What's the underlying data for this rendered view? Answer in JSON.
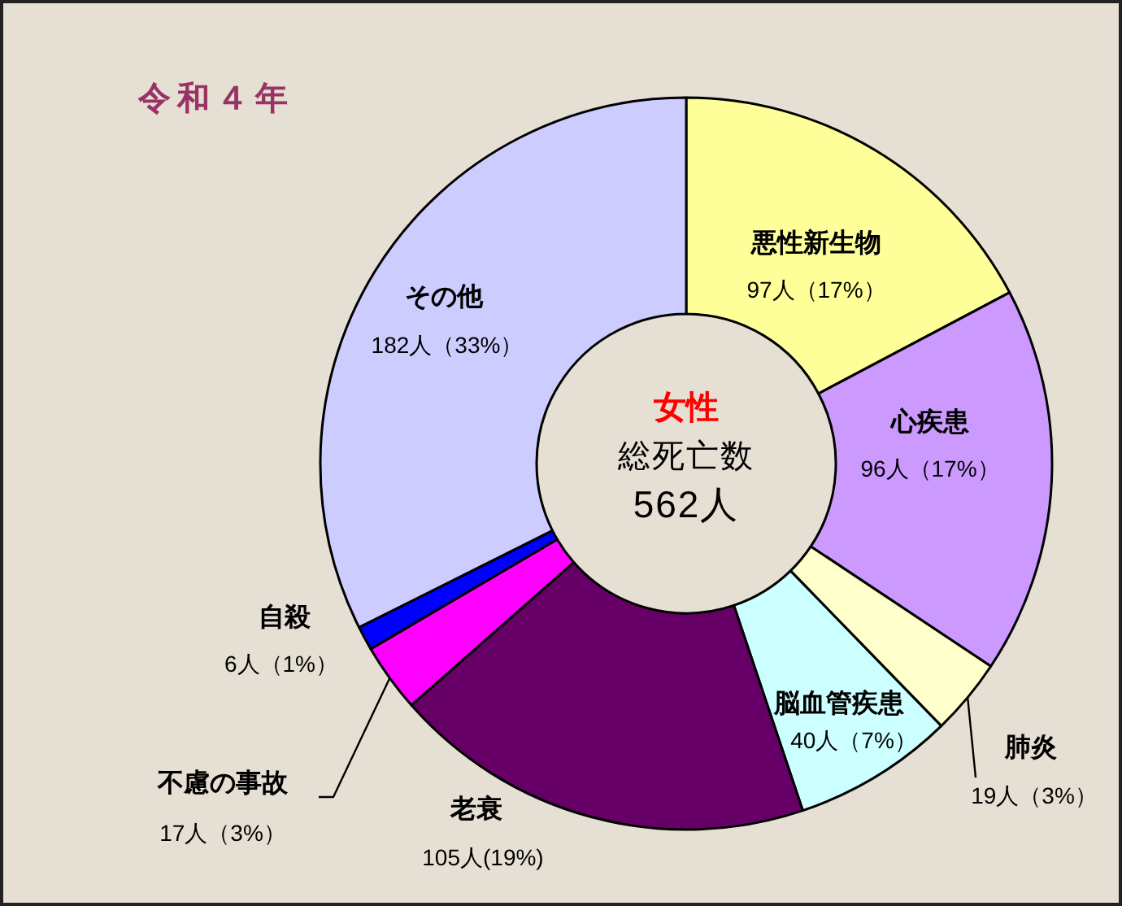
{
  "chart_data": {
    "type": "donut",
    "title": "令和４年",
    "subtitle": "女性",
    "annotations": [
      "総死亡数",
      "562人"
    ],
    "categories": [
      "悪性新生物",
      "心疾患",
      "肺炎",
      "脳血管疾患",
      "老衰",
      "不慮の事故",
      "自殺",
      "その他"
    ],
    "values": [
      97,
      96,
      19,
      40,
      105,
      17,
      6,
      182
    ],
    "value_labels": [
      "97人（17%）",
      "96人（17%）",
      "19人（3%）",
      "40人（7%）",
      "105人(19%)",
      "17人（3%）",
      "6人（1%）",
      "182人（33%）"
    ],
    "colors": [
      "#ffff99",
      "#cc99ff",
      "#ffffcc",
      "#ccffff",
      "#660066",
      "#ff00ff",
      "#0000ff",
      "#ccccff"
    ]
  }
}
